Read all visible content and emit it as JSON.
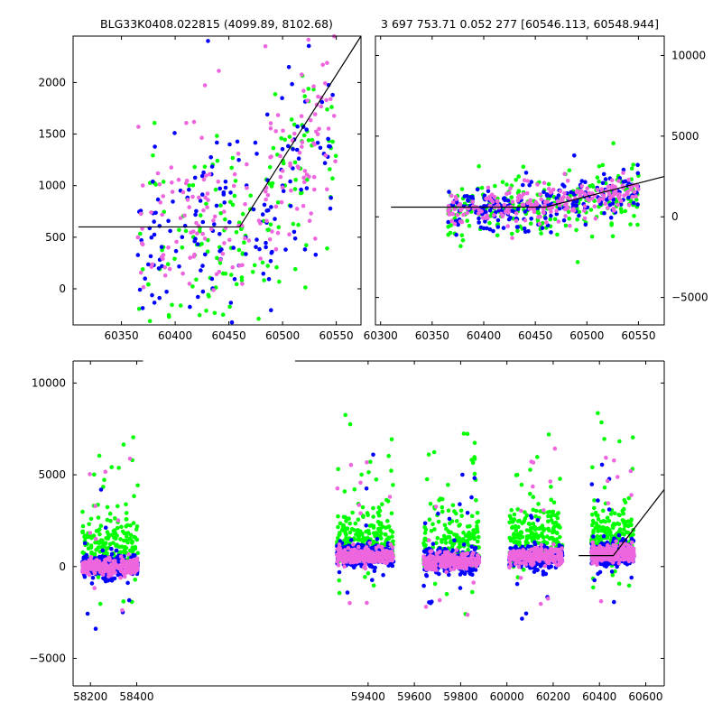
{
  "colors": {
    "series_a": "#00ff00",
    "series_b": "#0000ff",
    "series_c": "#ee66dd",
    "model": "#000000"
  },
  "chart_data": [
    {
      "id": "panel_top_left",
      "type": "scatter",
      "title": "BLG33K0408.022815 (4099.89, 8102.68)",
      "xlim": [
        60305,
        60573
      ],
      "ylim": [
        -350,
        2450
      ],
      "xticks": [
        60350,
        60400,
        60450,
        60500,
        60550
      ],
      "yticks": [
        0,
        500,
        1000,
        1500,
        2000
      ],
      "ytick_side": "left",
      "model_line": [
        [
          60310,
          600
        ],
        [
          60460,
          600
        ],
        [
          60575,
          2460
        ]
      ],
      "series": [
        {
          "color_key": "series_a",
          "trend": [
            [
              60365,
              200
            ],
            [
              60460,
              500
            ],
            [
              60550,
              1400
            ]
          ],
          "noise": 520
        },
        {
          "color_key": "series_b",
          "trend": [
            [
              60365,
              300
            ],
            [
              60460,
              450
            ],
            [
              60550,
              1550
            ]
          ],
          "noise": 480
        },
        {
          "color_key": "series_c",
          "trend": [
            [
              60365,
              400
            ],
            [
              60460,
              650
            ],
            [
              60550,
              1650
            ]
          ],
          "noise": 430
        }
      ]
    },
    {
      "id": "panel_top_right",
      "type": "scatter",
      "title": "3 697 753.71 0.052 277 [60546.113, 60548.944]",
      "xlim": [
        60295,
        60575
      ],
      "ylim": [
        -6700,
        11200
      ],
      "xticks": [
        60300,
        60350,
        60400,
        60450,
        60500,
        60550
      ],
      "yticks": [
        -5000,
        0,
        5000,
        10000
      ],
      "ytick_side": "right",
      "model_line": [
        [
          60310,
          600
        ],
        [
          60460,
          600
        ],
        [
          60575,
          2500
        ]
      ],
      "series": [
        {
          "color_key": "series_a",
          "trend": [
            [
              60365,
              400
            ],
            [
              60460,
              500
            ],
            [
              60550,
              1400
            ]
          ],
          "noise": 900
        },
        {
          "color_key": "series_b",
          "trend": [
            [
              60365,
              400
            ],
            [
              60460,
              450
            ],
            [
              60550,
              1550
            ]
          ],
          "noise": 700
        },
        {
          "color_key": "series_c",
          "trend": [
            [
              60365,
              400
            ],
            [
              60460,
              650
            ],
            [
              60550,
              1650
            ]
          ],
          "noise": 500
        }
      ]
    },
    {
      "id": "panel_bottom",
      "type": "scatter",
      "title": "",
      "xlim": [
        58125,
        60680
      ],
      "ylim": [
        -6500,
        11200
      ],
      "xticks": [
        58200,
        58400,
        59400,
        59600,
        59800,
        60000,
        60200,
        60400,
        60600
      ],
      "yticks": [
        -5000,
        0,
        5000,
        10000
      ],
      "ytick_side": "left",
      "axis_break": [
        58435,
        59260
      ],
      "model_line": [
        [
          60310,
          600
        ],
        [
          60460,
          600
        ],
        [
          60680,
          4200
        ]
      ],
      "seasons": [
        {
          "range": [
            58165,
            58405
          ],
          "level": 0
        },
        {
          "range": [
            59265,
            59510
          ],
          "level": 600
        },
        {
          "range": [
            59640,
            59880
          ],
          "level": 300
        },
        {
          "range": [
            60010,
            60240
          ],
          "level": 550
        },
        {
          "range": [
            60365,
            60550
          ],
          "level": 700
        }
      ]
    }
  ]
}
